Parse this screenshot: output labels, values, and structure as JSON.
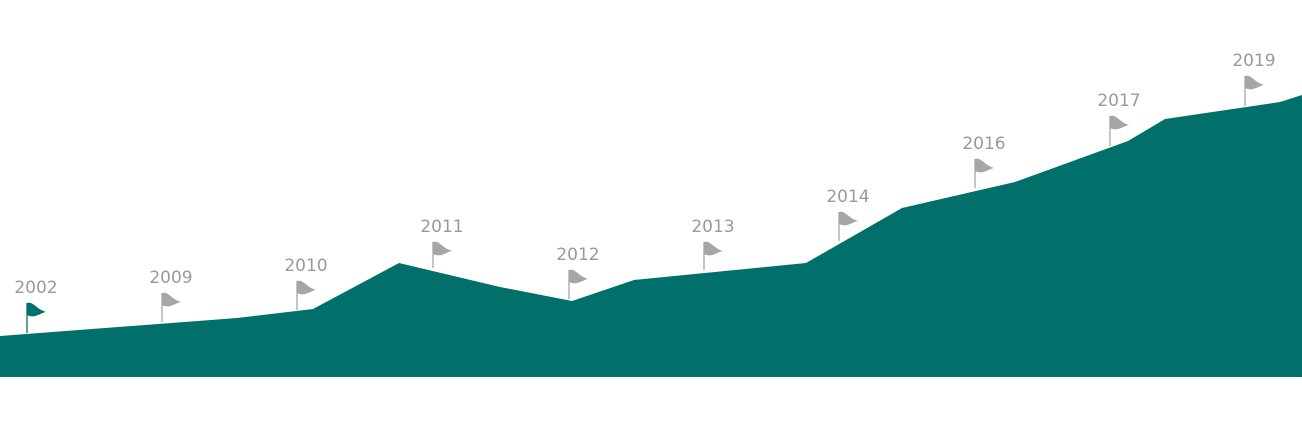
{
  "years": [
    "2002",
    "2009",
    "2010",
    "2011",
    "2012",
    "2013",
    "2014",
    "2016",
    "2017",
    "2019"
  ]
}
